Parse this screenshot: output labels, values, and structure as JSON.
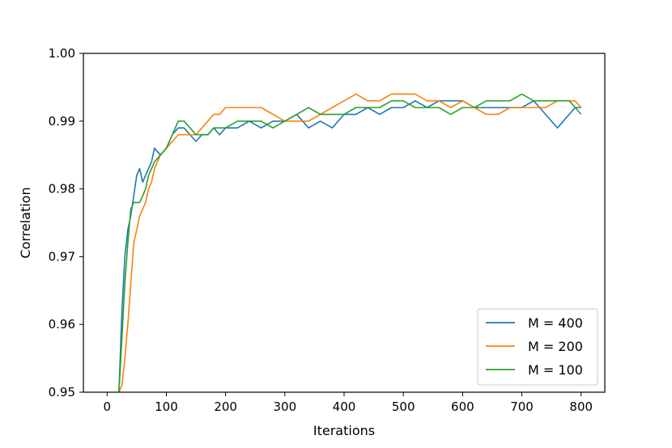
{
  "chart_data": {
    "type": "line",
    "xlabel": "Iterations",
    "ylabel": "Correlation",
    "xlim": [
      -40,
      840
    ],
    "ylim": [
      0.95,
      1.0
    ],
    "xticks": [
      0,
      100,
      200,
      300,
      400,
      500,
      600,
      700,
      800
    ],
    "yticks": [
      0.95,
      0.96,
      0.97,
      0.98,
      0.99,
      1.0
    ],
    "ytick_labels": [
      "0.95",
      "0.96",
      "0.97",
      "0.98",
      "0.99",
      "1.00"
    ],
    "grid": false,
    "legend_position": "lower-right",
    "series": [
      {
        "name": "M = 400",
        "color": "#1f77b4",
        "x": [
          20,
          25,
          30,
          35,
          40,
          45,
          50,
          55,
          60,
          65,
          70,
          75,
          80,
          90,
          100,
          110,
          120,
          130,
          140,
          150,
          160,
          170,
          180,
          190,
          200,
          220,
          240,
          260,
          280,
          300,
          320,
          340,
          360,
          380,
          400,
          420,
          440,
          460,
          480,
          500,
          520,
          540,
          560,
          580,
          600,
          620,
          640,
          660,
          680,
          700,
          720,
          740,
          760,
          770,
          780,
          790,
          800
        ],
        "y": [
          0.95,
          0.962,
          0.97,
          0.974,
          0.976,
          0.979,
          0.982,
          0.983,
          0.981,
          0.982,
          0.983,
          0.984,
          0.986,
          0.985,
          0.986,
          0.988,
          0.989,
          0.989,
          0.988,
          0.987,
          0.988,
          0.988,
          0.989,
          0.988,
          0.989,
          0.989,
          0.99,
          0.989,
          0.99,
          0.99,
          0.991,
          0.989,
          0.99,
          0.989,
          0.991,
          0.991,
          0.992,
          0.991,
          0.992,
          0.992,
          0.993,
          0.992,
          0.993,
          0.993,
          0.993,
          0.992,
          0.992,
          0.992,
          0.992,
          0.992,
          0.993,
          0.991,
          0.989,
          0.99,
          0.991,
          0.992,
          0.992
        ]
      },
      {
        "name": "M = 200",
        "color": "#ff7f0e",
        "x": [
          20,
          25,
          30,
          35,
          40,
          45,
          50,
          55,
          60,
          65,
          70,
          75,
          80,
          90,
          100,
          110,
          120,
          130,
          140,
          150,
          160,
          170,
          180,
          190,
          200,
          210,
          220,
          240,
          260,
          280,
          300,
          320,
          340,
          360,
          380,
          400,
          420,
          440,
          460,
          480,
          500,
          520,
          540,
          560,
          580,
          600,
          620,
          640,
          660,
          680,
          700,
          720,
          740,
          760,
          780,
          790,
          800
        ],
        "y": [
          0.95,
          0.951,
          0.955,
          0.96,
          0.966,
          0.972,
          0.974,
          0.976,
          0.977,
          0.978,
          0.98,
          0.981,
          0.983,
          0.985,
          0.986,
          0.987,
          0.988,
          0.988,
          0.988,
          0.988,
          0.989,
          0.99,
          0.991,
          0.991,
          0.992,
          0.992,
          0.992,
          0.992,
          0.992,
          0.991,
          0.99,
          0.99,
          0.99,
          0.991,
          0.992,
          0.993,
          0.994,
          0.993,
          0.993,
          0.994,
          0.994,
          0.994,
          0.993,
          0.993,
          0.992,
          0.993,
          0.992,
          0.991,
          0.991,
          0.992,
          0.992,
          0.992,
          0.992,
          0.993,
          0.993,
          0.993,
          0.992
        ]
      },
      {
        "name": "M = 100",
        "color": "#2ca02c",
        "x": [
          20,
          25,
          30,
          35,
          40,
          45,
          50,
          55,
          60,
          65,
          70,
          75,
          80,
          90,
          100,
          110,
          120,
          130,
          140,
          150,
          160,
          170,
          180,
          190,
          200,
          220,
          240,
          260,
          280,
          300,
          320,
          340,
          360,
          380,
          400,
          420,
          440,
          460,
          480,
          500,
          520,
          540,
          560,
          580,
          600,
          620,
          640,
          660,
          680,
          700,
          720,
          740,
          760,
          780,
          790,
          800
        ],
        "y": [
          0.95,
          0.958,
          0.966,
          0.972,
          0.977,
          0.978,
          0.978,
          0.978,
          0.979,
          0.98,
          0.982,
          0.983,
          0.984,
          0.985,
          0.986,
          0.988,
          0.99,
          0.99,
          0.989,
          0.988,
          0.988,
          0.988,
          0.989,
          0.989,
          0.989,
          0.99,
          0.99,
          0.99,
          0.989,
          0.99,
          0.991,
          0.992,
          0.991,
          0.991,
          0.991,
          0.992,
          0.992,
          0.992,
          0.993,
          0.993,
          0.992,
          0.992,
          0.992,
          0.991,
          0.992,
          0.992,
          0.993,
          0.993,
          0.993,
          0.994,
          0.993,
          0.993,
          0.993,
          0.993,
          0.992,
          0.991
        ]
      }
    ]
  }
}
